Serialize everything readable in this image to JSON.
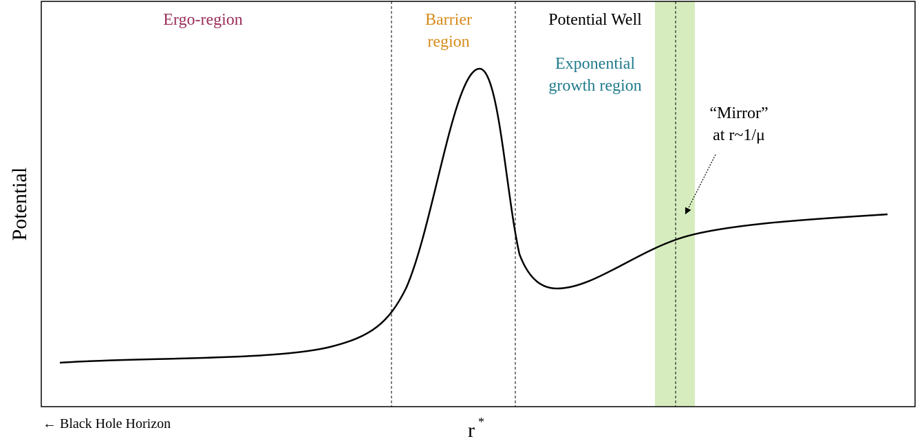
{
  "regions": {
    "ergo": "Ergo-region",
    "barrier": [
      "Barrier",
      "region"
    ],
    "well": "Potential Well",
    "growth": [
      "Exponential",
      "growth region"
    ],
    "mirror": [
      "“Mirror”",
      "at r~1/μ"
    ]
  },
  "axes": {
    "y_label": "Potential",
    "x_label": "r",
    "x_label_sup": "*",
    "horizon": "← Black Hole Horizon"
  }
}
